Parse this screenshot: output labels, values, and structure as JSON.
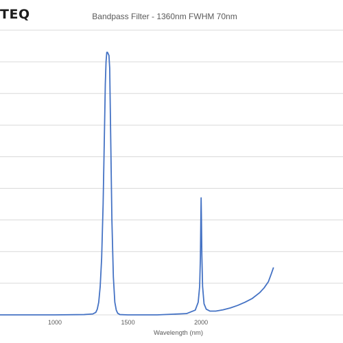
{
  "logo": {
    "text": "TEQ"
  },
  "chart_data": {
    "type": "line",
    "title": "Bandpass Filter - 1360nm FWHM 70nm",
    "xlabel": "Wavelength (nm)",
    "ylabel": "",
    "xlim": [
      625,
      2970
    ],
    "ylim": [
      0,
      90
    ],
    "x_ticks": [
      1000,
      1500,
      2000
    ],
    "y_gridlines": [
      10,
      20,
      30,
      40,
      50,
      60,
      70,
      80,
      90
    ],
    "grid": true,
    "legend": "none",
    "series": [
      {
        "color": "#4472C4",
        "x": [
          625,
          800,
          1000,
          1200,
          1260,
          1280,
          1290,
          1300,
          1310,
          1320,
          1330,
          1340,
          1345,
          1350,
          1355,
          1360,
          1365,
          1370,
          1375,
          1380,
          1390,
          1400,
          1410,
          1420,
          1430,
          1445,
          1500,
          1700,
          1900,
          1960,
          1980,
          1990,
          1995,
          1998,
          2000,
          2002,
          2005,
          2010,
          2020,
          2035,
          2060,
          2100,
          2150,
          2200,
          2250,
          2300,
          2350,
          2400,
          2430,
          2460,
          2480,
          2495
        ],
        "y": [
          0,
          0,
          0,
          0.1,
          0.3,
          0.8,
          1.8,
          4,
          9,
          18,
          35,
          60,
          73,
          80,
          83,
          83,
          82.5,
          82,
          78,
          62,
          30,
          12,
          4,
          1.5,
          0.5,
          0.1,
          0,
          0,
          0.4,
          1.5,
          4,
          9,
          18,
          30,
          37,
          31,
          19,
          9,
          3.5,
          1.8,
          1.2,
          1.2,
          1.6,
          2.2,
          3,
          4,
          5.2,
          7,
          8.5,
          10.5,
          13,
          15
        ]
      }
    ]
  }
}
